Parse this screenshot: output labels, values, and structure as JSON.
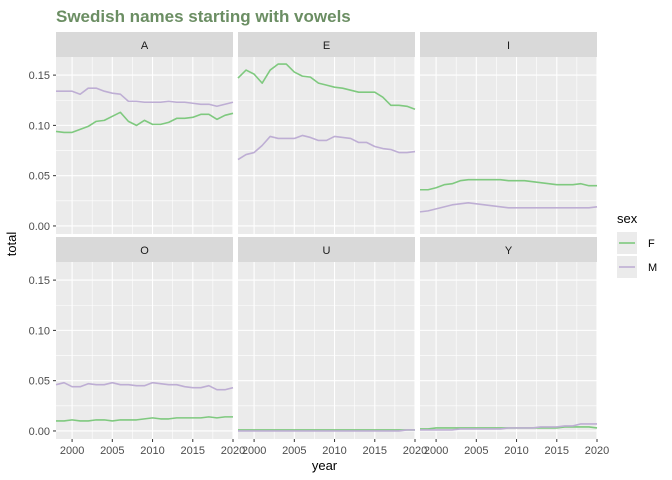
{
  "chart_data": {
    "type": "line",
    "title": "Swedish names starting with vowels",
    "xlabel": "year",
    "ylabel": "total",
    "xlim": [
      1998,
      2020
    ],
    "ylim": [
      -0.008,
      0.168
    ],
    "x_ticks": [
      2000,
      2005,
      2010,
      2015,
      2020
    ],
    "y_ticks": [
      0.0,
      0.05,
      0.1,
      0.15
    ],
    "y_tick_labels": [
      "0.00",
      "0.05",
      "0.10",
      "0.15"
    ],
    "grid": true,
    "legend": {
      "title": "sex",
      "placement": "right",
      "entries": [
        {
          "label": "F",
          "color": "#7fc97f"
        },
        {
          "label": "M",
          "color": "#beaed4"
        }
      ]
    },
    "x": [
      1998,
      1999,
      2000,
      2001,
      2002,
      2003,
      2004,
      2005,
      2006,
      2007,
      2008,
      2009,
      2010,
      2011,
      2012,
      2013,
      2014,
      2015,
      2016,
      2017,
      2018,
      2019,
      2020
    ],
    "panels": [
      {
        "label": "A",
        "series": [
          {
            "name": "F",
            "values": [
              0.094,
              0.093,
              0.093,
              0.096,
              0.099,
              0.104,
              0.105,
              0.109,
              0.113,
              0.104,
              0.1,
              0.105,
              0.101,
              0.101,
              0.103,
              0.107,
              0.107,
              0.108,
              0.111,
              0.111,
              0.106,
              0.11,
              0.112
            ]
          },
          {
            "name": "M",
            "values": [
              0.134,
              0.134,
              0.134,
              0.131,
              0.137,
              0.137,
              0.134,
              0.132,
              0.131,
              0.124,
              0.124,
              0.123,
              0.123,
              0.123,
              0.124,
              0.123,
              0.123,
              0.122,
              0.121,
              0.121,
              0.119,
              0.121,
              0.123
            ]
          }
        ]
      },
      {
        "label": "E",
        "series": [
          {
            "name": "F",
            "values": [
              0.147,
              0.155,
              0.151,
              0.142,
              0.155,
              0.161,
              0.161,
              0.153,
              0.149,
              0.148,
              0.142,
              0.14,
              0.138,
              0.137,
              0.135,
              0.133,
              0.133,
              0.133,
              0.128,
              0.12,
              0.12,
              0.119,
              0.116
            ]
          },
          {
            "name": "M",
            "values": [
              0.066,
              0.071,
              0.073,
              0.08,
              0.089,
              0.087,
              0.087,
              0.087,
              0.09,
              0.088,
              0.085,
              0.085,
              0.089,
              0.088,
              0.087,
              0.083,
              0.083,
              0.079,
              0.077,
              0.076,
              0.073,
              0.073,
              0.074
            ]
          }
        ]
      },
      {
        "label": "I",
        "series": [
          {
            "name": "F",
            "values": [
              0.036,
              0.036,
              0.038,
              0.041,
              0.042,
              0.045,
              0.046,
              0.046,
              0.046,
              0.046,
              0.046,
              0.045,
              0.045,
              0.045,
              0.044,
              0.043,
              0.042,
              0.041,
              0.041,
              0.041,
              0.042,
              0.04,
              0.04
            ]
          },
          {
            "name": "M",
            "values": [
              0.014,
              0.015,
              0.017,
              0.019,
              0.021,
              0.022,
              0.023,
              0.022,
              0.021,
              0.02,
              0.019,
              0.018,
              0.018,
              0.018,
              0.018,
              0.018,
              0.018,
              0.018,
              0.018,
              0.018,
              0.018,
              0.018,
              0.019
            ]
          }
        ]
      },
      {
        "label": "O",
        "series": [
          {
            "name": "F",
            "values": [
              0.01,
              0.01,
              0.011,
              0.01,
              0.01,
              0.011,
              0.011,
              0.01,
              0.011,
              0.011,
              0.011,
              0.012,
              0.013,
              0.012,
              0.012,
              0.013,
              0.013,
              0.013,
              0.013,
              0.014,
              0.013,
              0.014,
              0.014
            ]
          },
          {
            "name": "M",
            "values": [
              0.046,
              0.048,
              0.044,
              0.044,
              0.047,
              0.046,
              0.046,
              0.048,
              0.046,
              0.046,
              0.045,
              0.045,
              0.048,
              0.047,
              0.046,
              0.046,
              0.044,
              0.043,
              0.043,
              0.045,
              0.041,
              0.041,
              0.043
            ]
          }
        ]
      },
      {
        "label": "U",
        "series": [
          {
            "name": "F",
            "values": [
              0.001,
              0.001,
              0.001,
              0.001,
              0.001,
              0.001,
              0.001,
              0.001,
              0.001,
              0.001,
              0.001,
              0.001,
              0.001,
              0.001,
              0.001,
              0.001,
              0.001,
              0.001,
              0.001,
              0.001,
              0.001,
              0.001,
              0.001
            ]
          },
          {
            "name": "M",
            "values": [
              0.0,
              0.0,
              0.0,
              0.0,
              0.0,
              0.0,
              0.0,
              0.0,
              0.0,
              0.0,
              0.0,
              0.0,
              0.0,
              0.0,
              0.0,
              0.0,
              0.0,
              0.0,
              0.0,
              0.0,
              0.0,
              0.001,
              0.001
            ]
          }
        ]
      },
      {
        "label": "Y",
        "series": [
          {
            "name": "F",
            "values": [
              0.002,
              0.002,
              0.003,
              0.003,
              0.003,
              0.003,
              0.003,
              0.003,
              0.003,
              0.003,
              0.003,
              0.003,
              0.003,
              0.003,
              0.003,
              0.003,
              0.003,
              0.003,
              0.004,
              0.004,
              0.004,
              0.004,
              0.003
            ]
          },
          {
            "name": "M",
            "values": [
              0.001,
              0.001,
              0.001,
              0.001,
              0.001,
              0.002,
              0.002,
              0.002,
              0.002,
              0.002,
              0.002,
              0.003,
              0.003,
              0.003,
              0.003,
              0.004,
              0.004,
              0.004,
              0.005,
              0.005,
              0.007,
              0.007,
              0.007
            ]
          }
        ]
      }
    ]
  }
}
